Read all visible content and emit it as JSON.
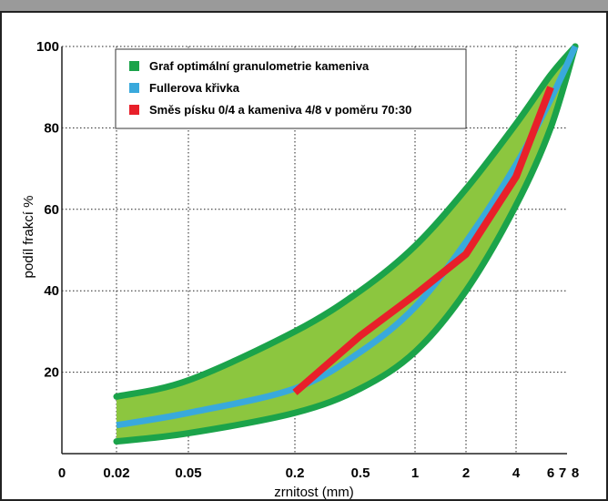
{
  "chart_data": {
    "type": "line",
    "title": "",
    "xlabel": "zrnitost (mm)",
    "ylabel": "podíl frakcí %",
    "xlim": [
      0,
      8
    ],
    "ylim": [
      0,
      100
    ],
    "grid": true,
    "legend_placement": "top-left",
    "x_tick_labels": [
      "0",
      "0.02",
      "0.05",
      "0.2",
      "0.5",
      "1",
      "2",
      "4",
      "6",
      "7",
      "8"
    ],
    "y_tick_labels": [
      "20",
      "40",
      "60",
      "80",
      "100"
    ],
    "y_ticks": [
      20,
      40,
      60,
      80,
      100
    ],
    "band": {
      "name": "Graf optimální granulometrie kameniva",
      "color": "#8CC63F",
      "border_color": "#1BA34A",
      "upper": [
        {
          "x": 0.02,
          "y": 14
        },
        {
          "x": 0.05,
          "y": 18
        },
        {
          "x": 0.2,
          "y": 30
        },
        {
          "x": 0.5,
          "y": 40
        },
        {
          "x": 1,
          "y": 51
        },
        {
          "x": 2,
          "y": 65
        },
        {
          "x": 4,
          "y": 81
        },
        {
          "x": 6,
          "y": 93
        },
        {
          "x": 8,
          "y": 100
        }
      ],
      "lower": [
        {
          "x": 0.02,
          "y": 3
        },
        {
          "x": 0.05,
          "y": 5
        },
        {
          "x": 0.2,
          "y": 10
        },
        {
          "x": 0.5,
          "y": 16
        },
        {
          "x": 1,
          "y": 25
        },
        {
          "x": 2,
          "y": 40
        },
        {
          "x": 4,
          "y": 61
        },
        {
          "x": 6,
          "y": 80
        },
        {
          "x": 8,
          "y": 100
        }
      ]
    },
    "series": [
      {
        "name": "Fullerova křivka",
        "color": "#39A9DC",
        "points": [
          {
            "x": 0.02,
            "y": 7
          },
          {
            "x": 0.05,
            "y": 10
          },
          {
            "x": 0.2,
            "y": 16
          },
          {
            "x": 0.5,
            "y": 25
          },
          {
            "x": 1,
            "y": 36
          },
          {
            "x": 2,
            "y": 52
          },
          {
            "x": 4,
            "y": 71
          },
          {
            "x": 6,
            "y": 87
          },
          {
            "x": 8,
            "y": 100
          }
        ]
      },
      {
        "name": "Směs písku 0/4 a kameniva 4/8 v poměru 70:30",
        "color": "#E8202A",
        "points": [
          {
            "x": 0.2,
            "y": 15
          },
          {
            "x": 0.5,
            "y": 29
          },
          {
            "x": 1,
            "y": 39
          },
          {
            "x": 2,
            "y": 49
          },
          {
            "x": 4,
            "y": 68
          },
          {
            "x": 6,
            "y": 90
          }
        ]
      }
    ]
  }
}
